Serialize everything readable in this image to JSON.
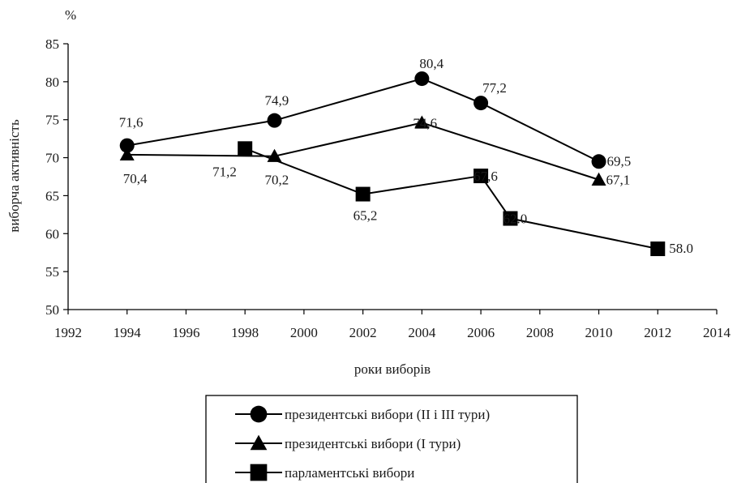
{
  "chart_data": {
    "type": "line",
    "unit_label": "%",
    "xlabel": "роки виборів",
    "ylabel": "виборча активність",
    "xlim": [
      1992,
      2014
    ],
    "ylim": [
      50,
      85
    ],
    "x_ticks": [
      1992,
      1994,
      1996,
      1998,
      2000,
      2002,
      2004,
      2006,
      2008,
      2010,
      2012,
      2014
    ],
    "y_ticks": [
      50,
      55,
      60,
      65,
      70,
      75,
      80,
      85
    ],
    "grid": false,
    "legend_position": "bottom",
    "series": [
      {
        "name": "президентські вибори (II і III тури)",
        "marker": "circle",
        "x": [
          1994,
          1999,
          2004,
          2006,
          2010
        ],
        "y": [
          71.6,
          74.9,
          80.4,
          77.2,
          69.5
        ],
        "labels": [
          "71,6",
          "74,9",
          "80,4",
          "77,2",
          "69,5"
        ]
      },
      {
        "name": "президентські вибори (I тури)",
        "marker": "triangle",
        "x": [
          1994,
          1999,
          2004,
          2010
        ],
        "y": [
          70.4,
          70.2,
          74.6,
          67.1
        ],
        "labels": [
          "70,4",
          "70,2",
          "74,6",
          "67,1"
        ]
      },
      {
        "name": "парламентські вибори",
        "marker": "square",
        "x": [
          1998,
          2002,
          2006,
          2007,
          2012
        ],
        "y": [
          71.2,
          65.2,
          67.6,
          62.0,
          58.0
        ],
        "labels": [
          "71,2",
          "65,2",
          "67,6",
          "62.0",
          "58.0"
        ]
      }
    ]
  }
}
